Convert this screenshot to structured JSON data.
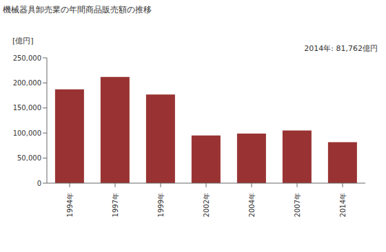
{
  "chart_data": {
    "type": "bar",
    "title": "機械器具卸売業の年間商品販売額の推移",
    "subtitle": "2014年: 81,762億円",
    "y_label": "[億円]",
    "categories": [
      "1994年",
      "1997年",
      "1999年",
      "2002年",
      "2004年",
      "2007年",
      "2014年"
    ],
    "values": [
      187000,
      212000,
      177000,
      95000,
      99000,
      105000,
      81762
    ],
    "color": "#993333",
    "ylim": [
      0,
      250000
    ],
    "yticks": [
      0,
      {
        "value": 50000,
        "label": "50,000"
      },
      {
        "value": 100000,
        "label": "100,000"
      },
      {
        "value": 150000,
        "label": "150,000"
      },
      {
        "value": 200000,
        "label": "200,000"
      },
      {
        "value": 250000,
        "label": "250,000"
      }
    ],
    "grid": false
  }
}
